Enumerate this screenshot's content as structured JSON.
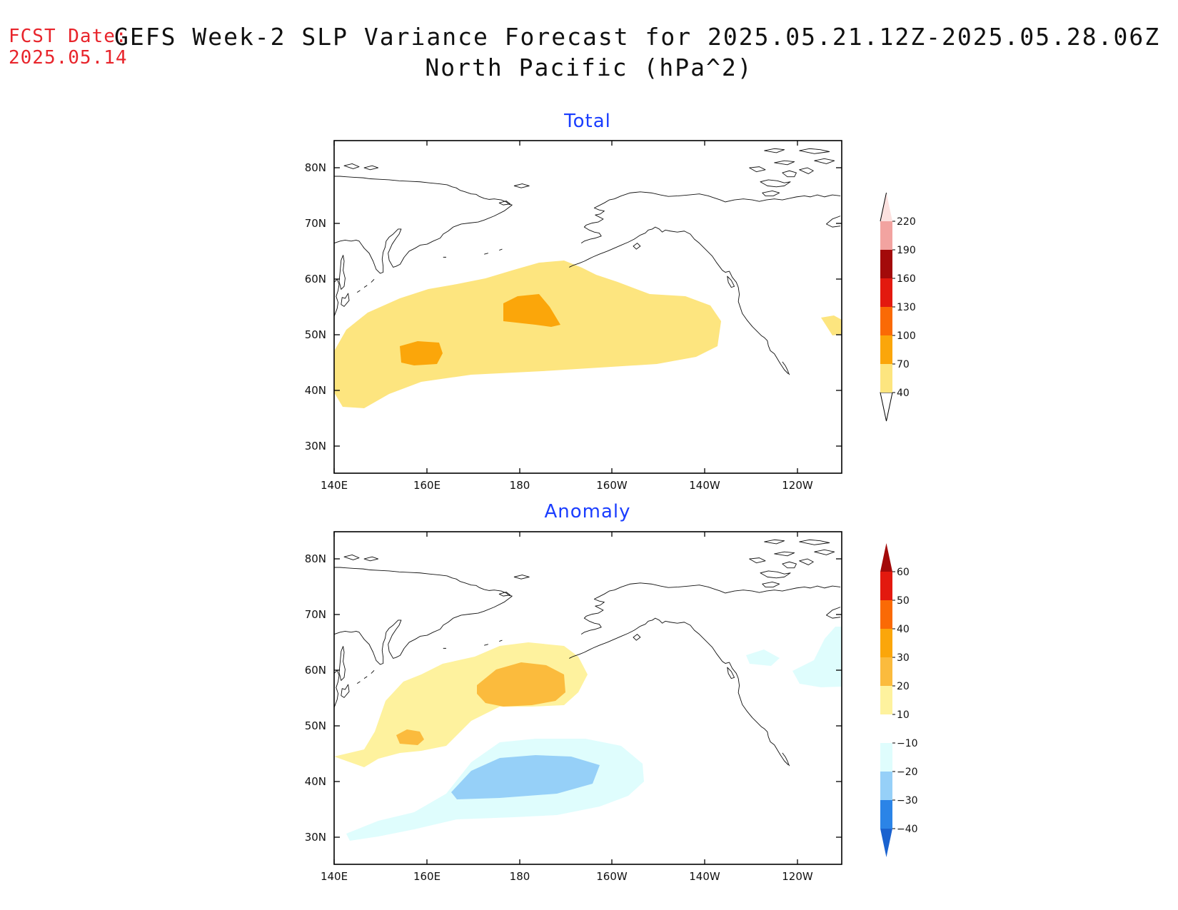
{
  "header": {
    "fcst_label": "FCST Date:",
    "fcst_date": "2025.05.14",
    "title": "GEFS Week-2 SLP Variance Forecast for 2025.05.21.12Z-2025.05.28.06Z",
    "subtitle": "North Pacific (hPa^2)"
  },
  "map": {
    "lon_labels": [
      "140E",
      "160E",
      "180",
      "160W",
      "140W",
      "120W"
    ],
    "lat_labels": [
      "80N",
      "70N",
      "60N",
      "50N",
      "40N",
      "30N"
    ],
    "extent": {
      "lon": [
        140,
        250
      ],
      "lat": [
        25,
        85
      ]
    }
  },
  "panels": [
    {
      "title": "Total",
      "colorbar": {
        "levels": [
          "40",
          "70",
          "100",
          "130",
          "160",
          "190",
          "220"
        ],
        "colors": [
          "#fde57f",
          "#fba60a",
          "#fa6a05",
          "#e3190f",
          "#a30a0a",
          "#f2a3a0",
          "#fce1df"
        ]
      },
      "regions": [
        {
          "level": "40-70",
          "color": "#fde57f"
        },
        {
          "level": "70-100",
          "color": "#fba60a"
        },
        {
          "level": "70-100",
          "color": "#fba60a"
        },
        {
          "level": "40-70",
          "color": "#fde57f"
        }
      ]
    },
    {
      "title": "Anomaly",
      "colorbar": {
        "levels": [
          "60",
          "50",
          "40",
          "30",
          "20",
          "10",
          "−10",
          "−20",
          "−30",
          "−40"
        ],
        "colors": [
          "#a30a0a",
          "#e3190f",
          "#fa6a05",
          "#fba60a",
          "#fbbb3d",
          "#fef29e",
          "#ffffff",
          "#dffdfd",
          "#96d0f8",
          "#2b84e7",
          "#1a62cf"
        ]
      },
      "regions": [
        {
          "level": "10-20",
          "color": "#fef29e"
        },
        {
          "level": "20-30",
          "color": "#fbbb3d"
        },
        {
          "level": "20-30",
          "color": "#fbbb3d"
        },
        {
          "level": "-10 to -20",
          "color": "#dffdfd"
        },
        {
          "level": "-20 to -30",
          "color": "#96d0f8"
        },
        {
          "level": "-10 to -20",
          "color": "#dffdfd"
        },
        {
          "level": "-10 to -20",
          "color": "#dffdfd"
        }
      ]
    }
  ]
}
